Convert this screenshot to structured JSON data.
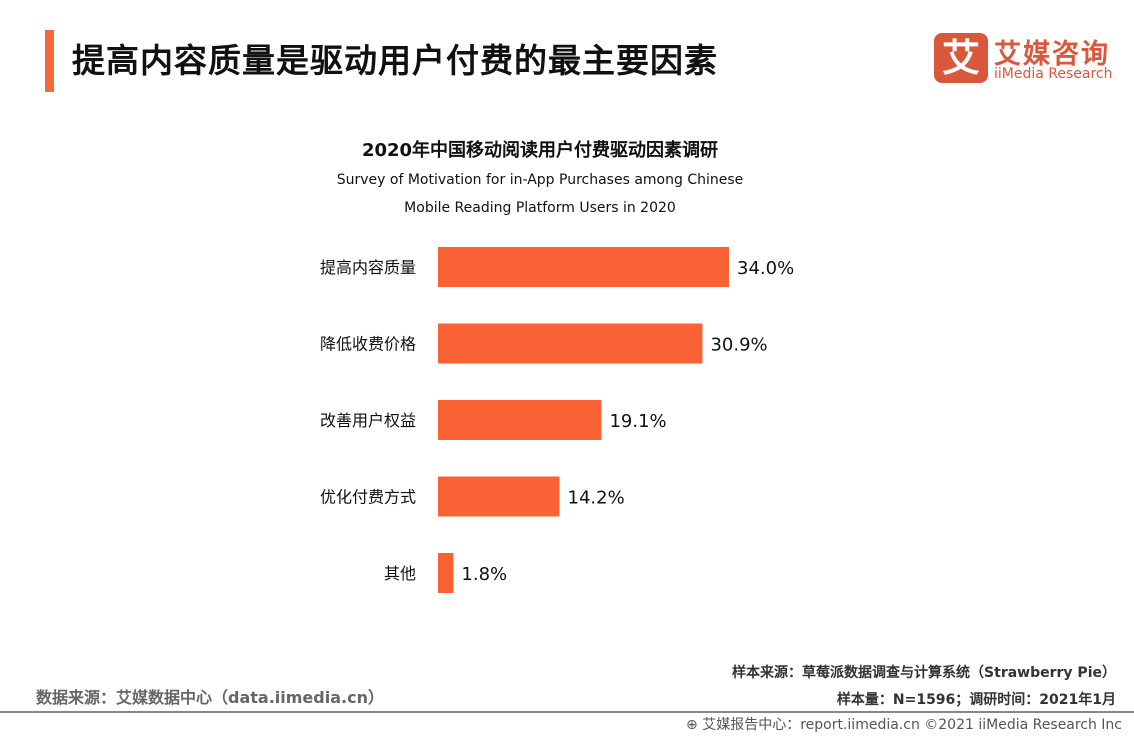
{
  "header": {
    "title": "提高内容质量是驱动用户付费的最主要因素",
    "logo_mark": "艾",
    "logo_cn": "艾媒咨询",
    "logo_en": "iiMedia Research"
  },
  "chart_data": {
    "type": "bar",
    "orientation": "horizontal",
    "title": "2020年中国移动阅读用户付费驱动因素调研",
    "subtitle_line1": "Survey of Motivation for in-App Purchases among  Chinese",
    "subtitle_line2": "Mobile Reading Platform Users in 2020",
    "categories": [
      "提高内容质量",
      "降低收费价格",
      "改善用户权益",
      "优化付费方式",
      "其他"
    ],
    "values": [
      34.0,
      30.9,
      19.1,
      14.2,
      1.8
    ],
    "labels": [
      "34.0%",
      "30.9%",
      "19.1%",
      "14.2%",
      "1.8%"
    ],
    "unit": "%",
    "bar_color": "#f96234",
    "grid": false
  },
  "footer": {
    "sample_source": "样本来源：草莓派数据调查与计算系统（Strawberry Pie）",
    "sample_size": "样本量：N=1596；调研时间：2021年1月",
    "data_source": "数据来源：艾媒数据中心（data.iimedia.cn）",
    "copyright": "艾媒报告中心：report.iimedia.cn   ©2021  iiMedia Research  Inc"
  }
}
